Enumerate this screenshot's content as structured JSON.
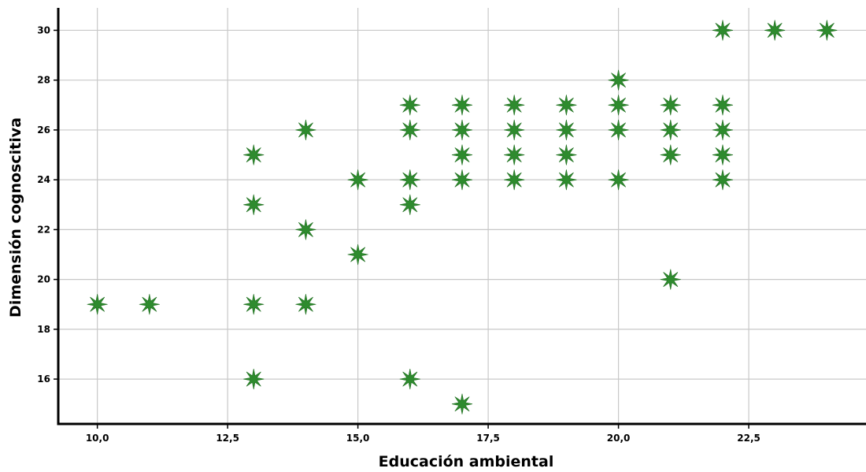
{
  "chart_data": {
    "type": "scatter",
    "xlabel": "Educación ambiental",
    "ylabel": "Dimensión cognoscitiva",
    "xlim": [
      9.25,
      24.75
    ],
    "ylim": [
      14.2,
      30.9
    ],
    "x_ticks": [
      10.0,
      12.5,
      15.0,
      17.5,
      20.0,
      22.5
    ],
    "x_tick_labels": [
      "10,0",
      "12,5",
      "15,0",
      "17,5",
      "20,0",
      "22,5"
    ],
    "y_ticks": [
      16,
      18,
      20,
      22,
      24,
      26,
      28,
      30
    ],
    "y_tick_labels": [
      "16",
      "18",
      "20",
      "22",
      "24",
      "26",
      "28",
      "30"
    ],
    "grid": true,
    "marker": "star",
    "marker_color": "#2e8b2e",
    "points": [
      {
        "x": 10,
        "y": 19
      },
      {
        "x": 11,
        "y": 19
      },
      {
        "x": 13,
        "y": 25
      },
      {
        "x": 13,
        "y": 23
      },
      {
        "x": 13,
        "y": 19
      },
      {
        "x": 13,
        "y": 16
      },
      {
        "x": 14,
        "y": 26
      },
      {
        "x": 14,
        "y": 22
      },
      {
        "x": 14,
        "y": 19
      },
      {
        "x": 15,
        "y": 24
      },
      {
        "x": 15,
        "y": 21
      },
      {
        "x": 16,
        "y": 27
      },
      {
        "x": 16,
        "y": 26
      },
      {
        "x": 16,
        "y": 24
      },
      {
        "x": 16,
        "y": 23
      },
      {
        "x": 16,
        "y": 16
      },
      {
        "x": 17,
        "y": 27
      },
      {
        "x": 17,
        "y": 26
      },
      {
        "x": 17,
        "y": 25
      },
      {
        "x": 17,
        "y": 24
      },
      {
        "x": 17,
        "y": 15
      },
      {
        "x": 18,
        "y": 27
      },
      {
        "x": 18,
        "y": 26
      },
      {
        "x": 18,
        "y": 25
      },
      {
        "x": 18,
        "y": 24
      },
      {
        "x": 19,
        "y": 27
      },
      {
        "x": 19,
        "y": 26
      },
      {
        "x": 19,
        "y": 25
      },
      {
        "x": 19,
        "y": 24
      },
      {
        "x": 20,
        "y": 28
      },
      {
        "x": 20,
        "y": 27
      },
      {
        "x": 20,
        "y": 26
      },
      {
        "x": 20,
        "y": 24
      },
      {
        "x": 21,
        "y": 27
      },
      {
        "x": 21,
        "y": 26
      },
      {
        "x": 21,
        "y": 25
      },
      {
        "x": 21,
        "y": 20
      },
      {
        "x": 22,
        "y": 30
      },
      {
        "x": 22,
        "y": 27
      },
      {
        "x": 22,
        "y": 26
      },
      {
        "x": 22,
        "y": 25
      },
      {
        "x": 22,
        "y": 24
      },
      {
        "x": 23,
        "y": 30
      },
      {
        "x": 24,
        "y": 30
      }
    ]
  }
}
